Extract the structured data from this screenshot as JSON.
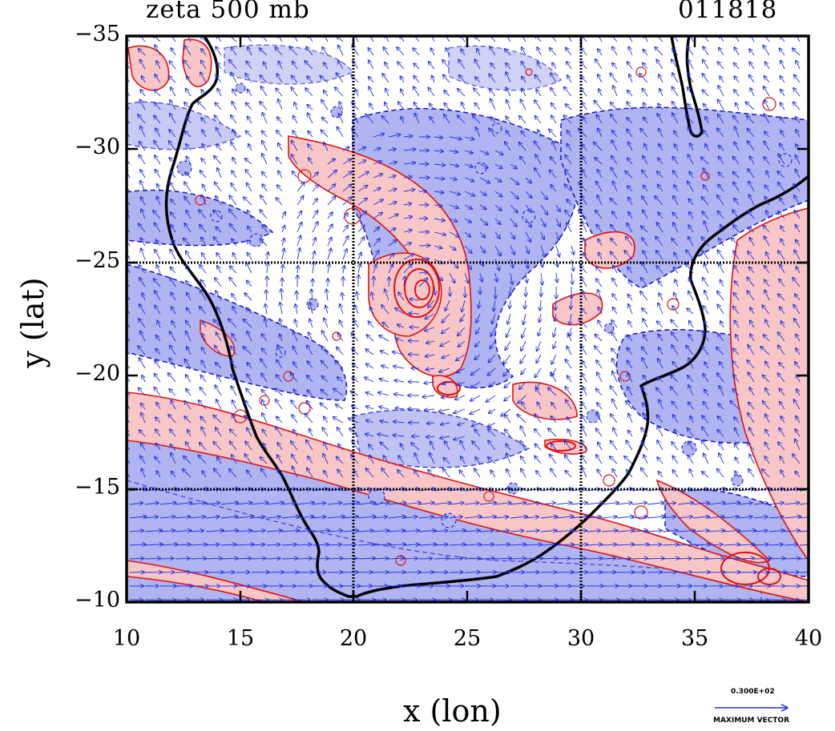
{
  "title": {
    "field": "zeta 500 mb",
    "code": "011818"
  },
  "axes": {
    "xlabel": "x (lon)",
    "ylabel": "y (lat)",
    "xticks": [
      "10",
      "15",
      "20",
      "25",
      "30",
      "35",
      "40"
    ],
    "yticks": [
      "−35",
      "−30",
      "−25",
      "−20",
      "−15",
      "−10"
    ]
  },
  "legend": {
    "vector_value": "0.300E+02",
    "vector_caption": "MAXIMUM VECTOR"
  },
  "colors": {
    "positive": "#f8c6c6",
    "positive_line": "#e01010",
    "negative": "#b0b4f0",
    "negative_line": "#1010d0",
    "vector": "#2030e0",
    "coast": "#000000"
  },
  "chart_data": {
    "type": "heatmap",
    "title": "zeta 500 mb",
    "xlabel": "x (lon)",
    "ylabel": "y (lat)",
    "xlim": [
      10,
      40
    ],
    "ylim": [
      -35,
      -10
    ],
    "grid": true,
    "grid_lines": {
      "lon": [
        20,
        30
      ],
      "lat": [
        -25,
        -15
      ]
    },
    "annotations": [
      "011818",
      "0.300E+02",
      "MAXIMUM VECTOR"
    ]
  }
}
